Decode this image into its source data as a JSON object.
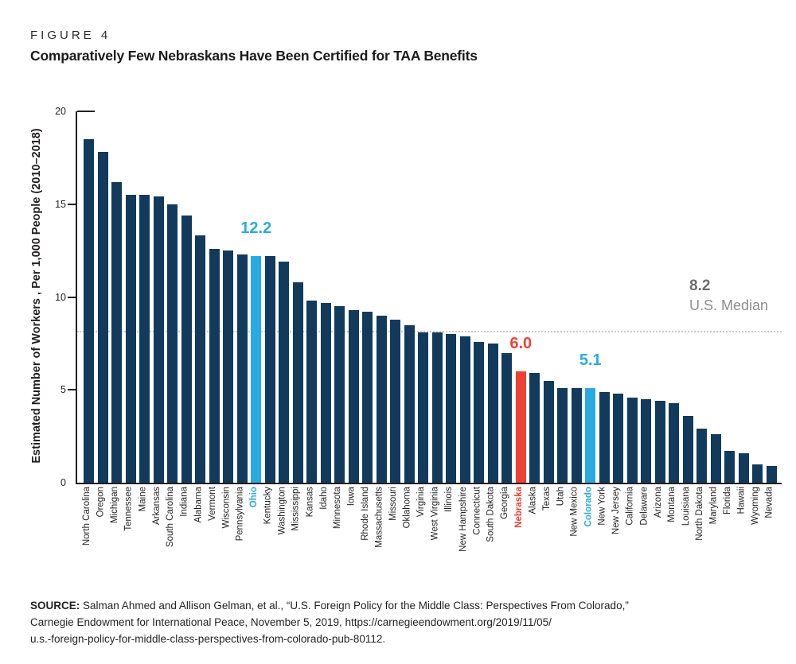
{
  "figure_label": "FIGURE 4",
  "title": "Comparatively Few Nebraskans Have Been Certified for TAA Benefits",
  "colors": {
    "bar_default": "#123a5c",
    "highlight_blue": "#29abe2",
    "highlight_red": "#ee4136",
    "median_line": "#c9cacb",
    "median_value_text": "#6d6e71",
    "median_caption_text": "#8a8c8f",
    "axis": "#231f20"
  },
  "chart_data": {
    "type": "bar",
    "title": "Comparatively Few Nebraskans Have Been Certified for TAA Benefits",
    "xlabel": "",
    "ylabel": "Estimated Number of Workers , Per 1,000 People (2010–2018)",
    "ylim": [
      0,
      20
    ],
    "yticks": [
      0,
      5,
      10,
      15,
      20
    ],
    "grid": false,
    "legend": "none",
    "categories": [
      "North Carolina",
      "Oregon",
      "Michigan",
      "Tennessee",
      "Maine",
      "Arkansas",
      "South Carolina",
      "Indiana",
      "Alabama",
      "Vermont",
      "Wisconsin",
      "Pennsylvania",
      "Ohio",
      "Kentucky",
      "Washington",
      "Mississippi",
      "Kansas",
      "Idaho",
      "Minnesota",
      "Iowa",
      "Rhode Island",
      "Massachusetts",
      "Missouri",
      "Oklahoma",
      "Virginia",
      "West Virginia",
      "Illinois",
      "New Hampshire",
      "Connecticut",
      "South Dakota",
      "Georgia",
      "Nebraska",
      "Alaska",
      "Texas",
      "Utah",
      "New Mexico",
      "Colorado",
      "New York",
      "New Jersey",
      "California",
      "Delaware",
      "Arizona",
      "Montana",
      "Louisiana",
      "North Dakota",
      "Maryland",
      "Florida",
      "Hawaii",
      "Wyoming",
      "Nevada"
    ],
    "values": [
      18.5,
      17.8,
      16.2,
      15.5,
      15.5,
      15.4,
      15.0,
      14.4,
      13.3,
      12.6,
      12.5,
      12.3,
      12.2,
      12.2,
      11.9,
      10.8,
      9.8,
      9.7,
      9.5,
      9.3,
      9.2,
      9.0,
      8.8,
      8.5,
      8.1,
      8.1,
      8.0,
      7.9,
      7.6,
      7.5,
      7.0,
      6.0,
      5.9,
      5.5,
      5.1,
      5.1,
      5.1,
      4.9,
      4.8,
      4.6,
      4.5,
      4.4,
      4.3,
      3.6,
      2.9,
      2.6,
      1.7,
      1.6,
      1.0,
      0.9
    ],
    "highlights": [
      {
        "index": 12,
        "state": "Ohio",
        "color": "#29abe2",
        "callout": "12.2"
      },
      {
        "index": 31,
        "state": "Nebraska",
        "color": "#ee4136",
        "callout": "6.0"
      },
      {
        "index": 36,
        "state": "Colorado",
        "color": "#29abe2",
        "callout": "5.1"
      }
    ],
    "median_line": {
      "value": 8.2,
      "label": "8.2",
      "sublabel": "U.S. Median"
    }
  },
  "source": {
    "label": "SOURCE:",
    "lines": [
      "Salman Ahmed and Allison Gelman, et al., “U.S. Foreign Policy for the Middle Class: Perspectives From Colorado,”",
      "Carnegie Endowment for International Peace, November 5, 2019, https://carnegieendowment.org/2019/11/05/",
      "u.s.-foreign-policy-for-middle-class-perspectives-from-colorado-pub-80112."
    ]
  }
}
